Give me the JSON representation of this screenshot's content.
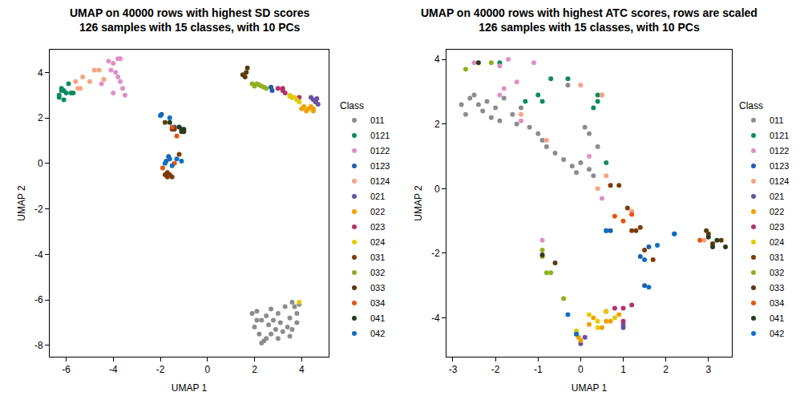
{
  "chart_data": [
    {
      "type": "scatter",
      "title": "UMAP on 40000 rows with highest SD scores\n126 samples with 15 classes, with 10 PCs",
      "x_label": "UMAP 1",
      "y_label": "UMAP 2",
      "legend_title": "Class",
      "xlim": [
        -6.7,
        5.15
      ],
      "ylim": [
        -8.5,
        5.0
      ],
      "xticks": [
        -6,
        -4,
        -2,
        0,
        2,
        4
      ],
      "yticks": [
        -8,
        -6,
        -4,
        -2,
        0,
        2,
        4
      ],
      "grid": false,
      "legend": "right",
      "marker": "circle",
      "series": [
        {
          "name": "011",
          "color": "#8c8c8c",
          "x": [
            1.9,
            2.1,
            2.3,
            2.0,
            2.2,
            2.4,
            2.3,
            2.5,
            2.6,
            2.8,
            2.7,
            3.0,
            3.1,
            3.2,
            3.0,
            3.4,
            3.5,
            3.6,
            3.7,
            3.8,
            3.9,
            3.6,
            3.3,
            2.9,
            2.5,
            3.8,
            2.1,
            3.5,
            2.7
          ],
          "y": [
            -6.6,
            -6.5,
            -6.9,
            -7.2,
            -7.5,
            -7.8,
            -7.9,
            -7.7,
            -7.1,
            -6.9,
            -6.4,
            -6.6,
            -7.0,
            -7.4,
            -7.7,
            -7.2,
            -6.8,
            -6.1,
            -6.3,
            -6.6,
            -6.2,
            -7.3,
            -6.3,
            -7.3,
            -6.7,
            -7.0,
            -6.9,
            -7.6,
            -7.5
          ]
        },
        {
          "name": "0121",
          "color": "#0f8a5f",
          "x": [
            -6.3,
            -6.2,
            -6.1,
            -6.0,
            -6.3,
            -5.9,
            -6.1,
            -5.8,
            -6.2,
            -5.7
          ],
          "y": [
            3.0,
            3.3,
            2.8,
            3.1,
            2.9,
            3.5,
            3.2,
            3.1,
            3.2,
            3.1
          ]
        },
        {
          "name": "0122",
          "color": "#e08fc8",
          "x": [
            -4.2,
            -4.0,
            -3.8,
            -3.9,
            -3.8,
            -3.7,
            -3.5,
            -3.6,
            -4.0,
            -4.5,
            -4.1,
            -3.7
          ],
          "y": [
            4.5,
            4.4,
            4.6,
            4.0,
            3.8,
            3.6,
            3.0,
            3.3,
            3.1,
            3.5,
            4.1,
            4.6
          ]
        },
        {
          "name": "0123",
          "color": "#1f5fad",
          "x": [
            2.7,
            2.75,
            -1.95,
            -1.65,
            -1.4,
            -1.75
          ],
          "y": [
            3.35,
            3.2,
            2.15,
            0.3,
            1.6,
            0.1
          ]
        },
        {
          "name": "0124",
          "color": "#f4a582",
          "x": [
            -5.6,
            -5.3,
            -5.0,
            -4.8,
            -4.6,
            -5.4,
            -4.4,
            -5.5
          ],
          "y": [
            3.6,
            3.8,
            3.6,
            4.1,
            4.1,
            3.3,
            3.7,
            3.3
          ]
        },
        {
          "name": "021",
          "color": "#6a51a3",
          "x": [
            4.5,
            4.6,
            4.7,
            4.4,
            4.65
          ],
          "y": [
            2.8,
            2.7,
            2.6,
            2.9,
            2.85
          ]
        },
        {
          "name": "022",
          "color": "#f0a000",
          "x": [
            4.0,
            4.2,
            4.3,
            4.5,
            4.4,
            4.1,
            3.6,
            4.5
          ],
          "y": [
            2.4,
            2.3,
            2.4,
            2.3,
            2.5,
            2.5,
            2.9,
            2.4
          ]
        },
        {
          "name": "023",
          "color": "#b2336b",
          "x": [
            3.2,
            3.3,
            3.2,
            3.9,
            3.0
          ],
          "y": [
            3.3,
            3.1,
            3.2,
            2.9,
            3.3
          ]
        },
        {
          "name": "024",
          "color": "#e0cc00",
          "x": [
            3.5,
            3.7,
            3.9,
            3.5,
            3.8,
            3.9
          ],
          "y": [
            3.0,
            2.9,
            2.7,
            2.95,
            2.8,
            -6.1
          ]
        },
        {
          "name": "031",
          "color": "#7f3b08",
          "x": [
            -1.7,
            -1.6,
            -1.8,
            -1.5,
            -1.2,
            -1.4,
            -1.5,
            -1.7
          ],
          "y": [
            -0.6,
            -0.5,
            -0.5,
            -0.6,
            0.4,
            1.5,
            1.5,
            -0.4
          ]
        },
        {
          "name": "032",
          "color": "#8fb01f",
          "x": [
            1.9,
            2.0,
            2.1,
            2.3,
            2.5,
            2.2,
            2.4
          ],
          "y": [
            3.5,
            3.4,
            3.5,
            3.4,
            3.3,
            3.45,
            3.35
          ]
        },
        {
          "name": "033",
          "color": "#5a3a10",
          "x": [
            1.6,
            1.7,
            1.5,
            1.65,
            -1.8
          ],
          "y": [
            3.8,
            4.2,
            3.9,
            4.0,
            1.8
          ]
        },
        {
          "name": "034",
          "color": "#e6550d",
          "x": [
            -1.9,
            -1.5,
            -1.3,
            -1.4
          ],
          "y": [
            -0.2,
            1.6,
            1.2,
            0.0
          ]
        },
        {
          "name": "041",
          "color": "#2a3a1a",
          "x": [
            -1.0,
            -1.1,
            -1.2,
            -1.6,
            -1.1,
            -1.0
          ],
          "y": [
            1.5,
            1.4,
            1.6,
            1.8,
            1.5,
            1.4
          ]
        },
        {
          "name": "042",
          "color": "#0f6fc6",
          "x": [
            -2.0,
            -1.6,
            -1.6,
            -1.8,
            -1.1,
            -1.3,
            -1.5
          ],
          "y": [
            2.1,
            2.0,
            0.2,
            0.0,
            0.1,
            0.2,
            -0.1
          ]
        }
      ]
    },
    {
      "type": "scatter",
      "title": "UMAP on 40000 rows with highest ATC scores, rows are scaled\n126 samples with 15 classes, with 10 PCs",
      "x_label": "UMAP 1",
      "y_label": "UMAP 2",
      "legend_title": "Class",
      "xlim": [
        -3.15,
        3.55
      ],
      "ylim": [
        -5.2,
        4.3
      ],
      "xticks": [
        -3,
        -2,
        -1,
        0,
        1,
        2,
        3
      ],
      "yticks": [
        -4,
        -2,
        0,
        2,
        4
      ],
      "grid": false,
      "legend": "right",
      "marker": "circle",
      "series": [
        {
          "name": "011",
          "color": "#8c8c8c",
          "x": [
            -2.8,
            -2.7,
            -2.6,
            -2.5,
            -2.4,
            -2.3,
            -2.2,
            -2.1,
            -2.0,
            -1.9,
            -1.8,
            -1.6,
            -1.5,
            -1.4,
            -1.2,
            -1.0,
            -0.9,
            -0.8,
            -0.6,
            -0.4,
            -0.2,
            -0.1,
            0.0,
            0.2,
            0.3,
            0.1,
            0.2,
            0.4,
            -0.3
          ],
          "y": [
            2.6,
            2.3,
            2.8,
            2.9,
            2.6,
            2.4,
            2.7,
            2.2,
            2.5,
            2.1,
            2.8,
            2.3,
            2.0,
            2.5,
            1.9,
            1.7,
            1.5,
            1.3,
            1.1,
            0.9,
            0.7,
            0.5,
            0.8,
            0.6,
            0.4,
            1.9,
            1.7,
            1.3,
            3.2
          ]
        },
        {
          "name": "0121",
          "color": "#0f8a5f",
          "x": [
            -1.9,
            -1.3,
            -1.0,
            -0.7,
            -0.3,
            0.3,
            0.4,
            -0.9,
            0.6,
            0.4
          ],
          "y": [
            3.9,
            2.7,
            2.9,
            3.4,
            3.4,
            2.5,
            2.7,
            2.7,
            0.8,
            2.9
          ]
        },
        {
          "name": "0122",
          "color": "#e08fc8",
          "x": [
            -2.5,
            -1.9,
            -1.7,
            -1.1,
            -1.5,
            -1.8,
            -1.9,
            -1.4,
            0.5,
            0.2,
            0.5,
            -0.9
          ],
          "y": [
            3.9,
            3.8,
            4.0,
            3.9,
            3.3,
            3.1,
            2.9,
            2.1,
            2.9,
            1.0,
            -0.3,
            -1.6
          ]
        },
        {
          "name": "0123",
          "color": "#1f5fad",
          "x": [
            0.6,
            0.7,
            1.4,
            1.6,
            2.2,
            1.5
          ],
          "y": [
            -1.3,
            -1.3,
            -2.1,
            -1.8,
            -1.4,
            -3.0
          ]
        },
        {
          "name": "0124",
          "color": "#f4a582",
          "x": [
            -1.4,
            -0.8,
            0.0,
            0.5,
            0.6,
            0.4,
            1.2,
            2.9
          ],
          "y": [
            2.3,
            1.5,
            3.2,
            2.9,
            0.4,
            0.0,
            -0.7,
            -1.6
          ]
        },
        {
          "name": "021",
          "color": "#6a51a3",
          "x": [
            -0.1,
            0.0,
            1.0,
            1.0,
            0.1
          ],
          "y": [
            -4.5,
            -4.8,
            -4.2,
            -4.3,
            -4.6
          ]
        },
        {
          "name": "022",
          "color": "#f0a000",
          "x": [
            -0.05,
            0.2,
            0.5,
            0.6,
            0.7,
            0.9,
            0.3,
            0.0
          ],
          "y": [
            -4.6,
            -4.2,
            -4.3,
            -4.1,
            -4.1,
            -3.9,
            -4.0,
            -4.7
          ]
        },
        {
          "name": "023",
          "color": "#b2336b",
          "x": [
            0.8,
            1.0,
            1.2,
            0.6,
            1.0
          ],
          "y": [
            -3.7,
            -3.7,
            -3.6,
            -3.8,
            -4.1
          ]
        },
        {
          "name": "024",
          "color": "#e0cc00",
          "x": [
            0.2,
            0.4,
            0.6,
            0.8,
            -0.1,
            0.4
          ],
          "y": [
            -3.9,
            -4.1,
            -3.8,
            -4.0,
            -4.4,
            -4.3
          ]
        },
        {
          "name": "031",
          "color": "#7f3b08",
          "x": [
            0.9,
            1.1,
            1.2,
            1.3,
            1.4,
            1.5,
            1.7,
            0.7
          ],
          "y": [
            0.1,
            -0.6,
            -1.3,
            -1.3,
            -1.2,
            -1.9,
            -2.2,
            0.1
          ]
        },
        {
          "name": "032",
          "color": "#8fb01f",
          "x": [
            -2.7,
            -2.1,
            -0.9,
            -0.8,
            -0.7,
            -0.4,
            -0.9
          ],
          "y": [
            3.7,
            3.9,
            -2.1,
            -2.6,
            -2.6,
            -3.4,
            -1.9
          ]
        },
        {
          "name": "033",
          "color": "#5a3a10",
          "x": [
            -0.6,
            2.95,
            3.0,
            3.3,
            3.1
          ],
          "y": [
            -2.3,
            -1.3,
            -1.4,
            -1.6,
            -1.7
          ]
        },
        {
          "name": "034",
          "color": "#e6550d",
          "x": [
            0.8,
            1.0,
            1.2,
            2.8
          ],
          "y": [
            -0.85,
            -1.0,
            -0.8,
            -1.6
          ]
        },
        {
          "name": "041",
          "color": "#2a3a1a",
          "x": [
            -2.4,
            -0.9,
            3.0,
            3.2,
            3.4,
            3.1
          ],
          "y": [
            3.9,
            -2.05,
            -1.5,
            -1.6,
            -1.8,
            -1.8
          ]
        },
        {
          "name": "042",
          "color": "#0f6fc6",
          "x": [
            0.6,
            -0.3,
            1.5,
            1.8,
            2.2,
            1.6,
            -0.1
          ],
          "y": [
            -1.3,
            -3.9,
            -2.2,
            -1.75,
            -1.4,
            -3.05,
            -4.5
          ]
        }
      ]
    }
  ]
}
